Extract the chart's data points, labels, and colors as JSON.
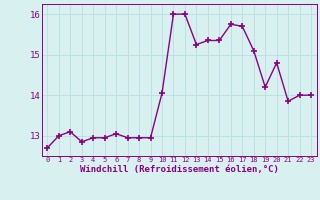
{
  "x": [
    0,
    1,
    2,
    3,
    4,
    5,
    6,
    7,
    8,
    9,
    10,
    11,
    12,
    13,
    14,
    15,
    16,
    17,
    18,
    19,
    20,
    21,
    22,
    23
  ],
  "y": [
    12.7,
    13.0,
    13.1,
    12.85,
    12.95,
    12.95,
    13.05,
    12.95,
    12.95,
    12.95,
    14.05,
    16.0,
    16.0,
    15.25,
    15.35,
    15.35,
    15.75,
    15.7,
    15.1,
    14.2,
    14.8,
    13.85,
    14.0,
    14.0
  ],
  "line_color": "#880088",
  "marker": "+",
  "markersize": 4,
  "linewidth": 1.0,
  "bg_color": "#d8f0f0",
  "grid_color": "#b8dede",
  "xlabel": "Windchill (Refroidissement éolien,°C)",
  "xlabel_color": "#880088",
  "tick_color": "#880088",
  "ylim": [
    12.5,
    16.25
  ],
  "xlim": [
    -0.5,
    23.5
  ],
  "yticks": [
    13,
    14,
    15,
    16
  ],
  "xticks": [
    0,
    1,
    2,
    3,
    4,
    5,
    6,
    7,
    8,
    9,
    10,
    11,
    12,
    13,
    14,
    15,
    16,
    17,
    18,
    19,
    20,
    21,
    22,
    23
  ],
  "spine_color": "#880088"
}
